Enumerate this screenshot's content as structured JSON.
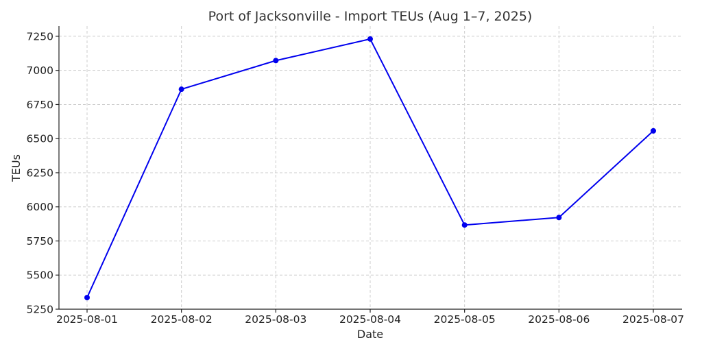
{
  "chart_data": {
    "type": "line",
    "title": "Port of Jacksonville - Import TEUs (Aug 1–7, 2025)",
    "xlabel": "Date",
    "ylabel": "TEUs",
    "x": [
      "2025-08-01",
      "2025-08-02",
      "2025-08-03",
      "2025-08-04",
      "2025-08-05",
      "2025-08-06",
      "2025-08-07"
    ],
    "series": [
      {
        "values": [
          5335,
          6862,
          7072,
          7230,
          5867,
          5922,
          6557
        ],
        "color": "#0000ee"
      }
    ],
    "yticks": [
      5250,
      5500,
      5750,
      6000,
      6250,
      6500,
      6750,
      7000,
      7250
    ],
    "ylim": [
      5250,
      7325
    ],
    "grid": true,
    "legend": "none",
    "marker": "circle"
  }
}
